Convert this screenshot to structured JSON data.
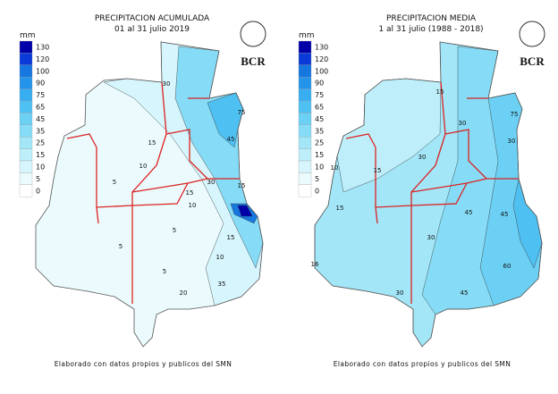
{
  "panels": [
    {
      "title": "PRECIPITACION ACUMULADA",
      "subtitle": "01 al 31 julio 2019",
      "logo": "BCR",
      "legend": {
        "unit": "mm",
        "levels": [
          130,
          120,
          100,
          90,
          75,
          65,
          45,
          35,
          25,
          15,
          10,
          5,
          0
        ],
        "colors": [
          "#0000a8",
          "#0a3ad8",
          "#1677e0",
          "#2493ea",
          "#38aef0",
          "#4fc0f2",
          "#6bd0f4",
          "#86dcf6",
          "#a2e6f8",
          "#bdeefa",
          "#d6f5fc",
          "#ebfbfd",
          "#ffffff"
        ]
      },
      "contour_labels": [
        30,
        15,
        10,
        5,
        15,
        30,
        45,
        75,
        10,
        5,
        15,
        10,
        20,
        35,
        5,
        15,
        5
      ],
      "footer": "Elaborado con datos propios y publicos del SMN"
    },
    {
      "title": "PRECIPITACION MEDIA",
      "subtitle": "1 al 31 julio (1988 - 2018)",
      "logo": "BCR",
      "legend": {
        "unit": "mm",
        "levels": [
          130,
          120,
          100,
          90,
          75,
          65,
          45,
          35,
          25,
          15,
          10,
          5,
          0
        ],
        "colors": [
          "#0000a8",
          "#0a3ad8",
          "#1677e0",
          "#2493ea",
          "#38aef0",
          "#4fc0f2",
          "#6bd0f4",
          "#86dcf6",
          "#a2e6f8",
          "#bdeefa",
          "#d6f5fc",
          "#ebfbfd",
          "#ffffff"
        ]
      },
      "contour_labels": [
        15,
        30,
        10,
        15,
        15,
        30,
        45,
        75,
        30,
        45,
        60,
        16,
        30,
        45,
        30
      ],
      "footer": "Elaborado con datos propios y publicos del SMN"
    }
  ]
}
